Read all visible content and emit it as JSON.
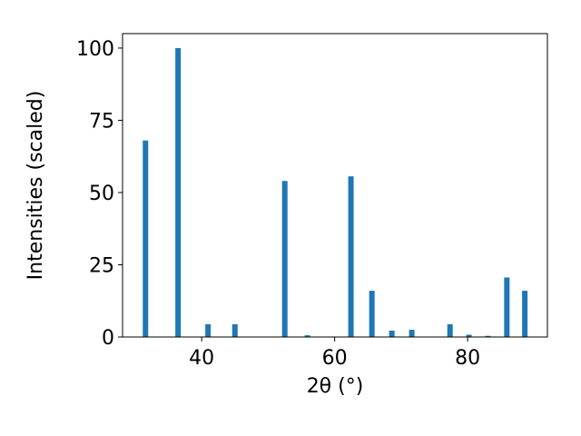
{
  "chart_data": {
    "type": "bar",
    "x": [
      31.55,
      36.45,
      40.95,
      45.0,
      52.5,
      55.9,
      62.45,
      65.6,
      68.6,
      71.6,
      77.35,
      80.2,
      83.05,
      85.9,
      88.6
    ],
    "values": [
      68,
      100,
      4.4,
      4.4,
      54,
      0.6,
      55.6,
      16,
      2.2,
      2.5,
      4.4,
      0.8,
      0.4,
      20.6,
      16
    ],
    "color": "#1f77b4",
    "xlabel": "2θ (°)",
    "ylabel": "Intensities (scaled)",
    "xlim": [
      28.1,
      92.0
    ],
    "xticks": [
      40,
      60,
      80
    ],
    "ylim": [
      0,
      105
    ],
    "yticks": [
      0,
      25,
      50,
      75,
      100
    ]
  }
}
